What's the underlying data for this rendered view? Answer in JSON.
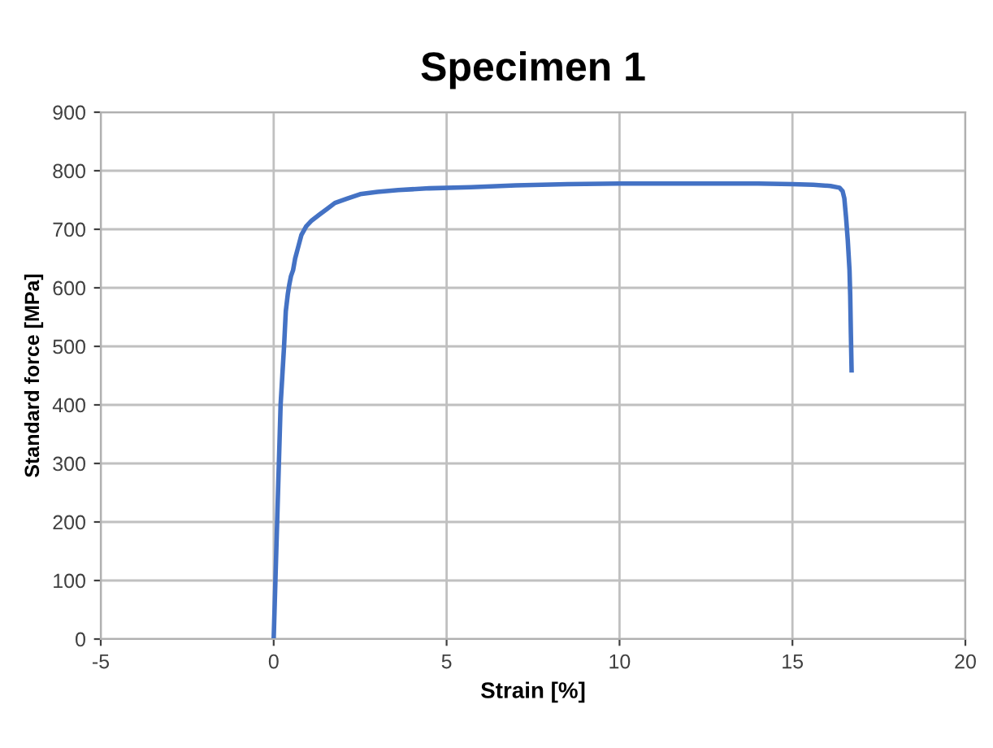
{
  "chart_data": {
    "type": "line",
    "title": "Specimen 1",
    "xlabel": "Strain [%]",
    "ylabel": "Standard force [MPa]",
    "xlim": [
      -5,
      20
    ],
    "xticks": [
      -5,
      0,
      5,
      10,
      15,
      20
    ],
    "ylim": [
      0,
      900
    ],
    "yticks": [
      0,
      100,
      200,
      300,
      400,
      500,
      600,
      700,
      800,
      900
    ],
    "grid": true,
    "legend": false,
    "marker": "none",
    "line_style": "solid",
    "series": [
      {
        "color": "#4472c4",
        "x": [
          0,
          0.03,
          0.05,
          0.1,
          0.15,
          0.2,
          0.25,
          0.3,
          0.35,
          0.41,
          0.45,
          0.5,
          0.56,
          0.62,
          0.71,
          0.8,
          0.94,
          1.1,
          1.32,
          1.55,
          1.77,
          2.1,
          2.5,
          3.0,
          3.6,
          4.5,
          5.7,
          7,
          8.5,
          10,
          11.5,
          13,
          14,
          15,
          15.6,
          16.1,
          16.36,
          16.45,
          16.5,
          16.55,
          16.6,
          16.65,
          16.67,
          16.69,
          16.71
        ],
        "values": [
          0,
          60,
          100,
          200,
          300,
          400,
          450,
          500,
          560,
          590,
          605,
          620,
          630,
          650,
          670,
          690,
          705,
          715,
          725,
          735,
          745,
          752,
          760,
          764,
          767,
          770,
          772,
          775,
          777,
          778,
          778,
          778,
          778,
          777,
          776,
          774,
          771,
          765,
          753,
          720,
          681,
          630,
          588,
          520,
          459
        ]
      }
    ]
  }
}
